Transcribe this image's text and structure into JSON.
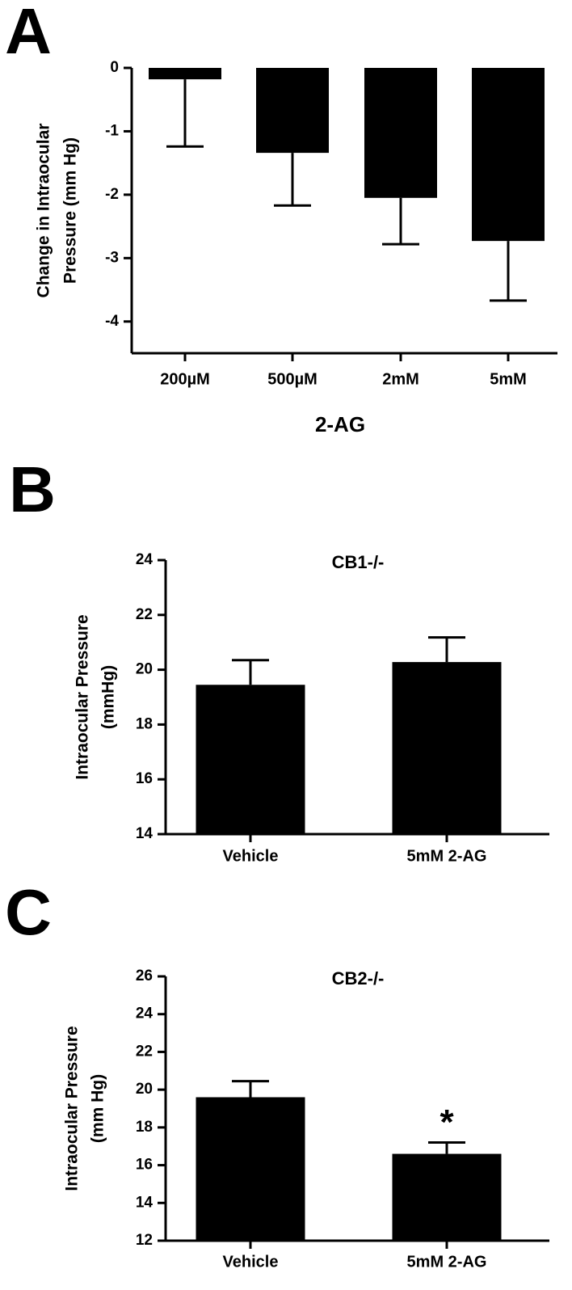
{
  "chart_data": [
    {
      "type": "bar",
      "panel": "A",
      "y_label": [
        "Change in Intraocular",
        "Pressure (mm Hg)"
      ],
      "x_label": "2-AG",
      "categories": [
        "200µM",
        "500µM",
        "2mM",
        "5mM"
      ],
      "values": [
        -0.18,
        -1.34,
        -2.05,
        -2.73
      ],
      "errors": [
        1.06,
        0.83,
        0.73,
        0.94
      ],
      "color": "#000000",
      "ylim": [
        -4.5,
        0
      ],
      "yticks": [
        0,
        -1,
        -2,
        -3,
        -4
      ]
    },
    {
      "type": "bar",
      "panel": "B",
      "title": "CB1-/-",
      "y_label": [
        "Intraocular Pressure",
        "(mmHg)"
      ],
      "categories": [
        "Vehicle",
        "5mM 2-AG"
      ],
      "values": [
        19.45,
        20.28
      ],
      "errors": [
        0.9,
        0.9
      ],
      "color": "#000000",
      "ylim": [
        14,
        24
      ],
      "yticks": [
        14,
        16,
        18,
        20,
        22,
        24
      ]
    },
    {
      "type": "bar",
      "panel": "C",
      "title": "CB2-/-",
      "y_label": [
        "Intraocular Pressure",
        "(mm Hg)"
      ],
      "categories": [
        "Vehicle",
        "5mM 2-AG"
      ],
      "values": [
        19.6,
        16.6
      ],
      "errors": [
        0.85,
        0.6
      ],
      "annotations": [
        null,
        "*"
      ],
      "color": "#000000",
      "ylim": [
        12,
        26
      ],
      "yticks": [
        12,
        14,
        16,
        18,
        20,
        22,
        24,
        26
      ]
    }
  ]
}
